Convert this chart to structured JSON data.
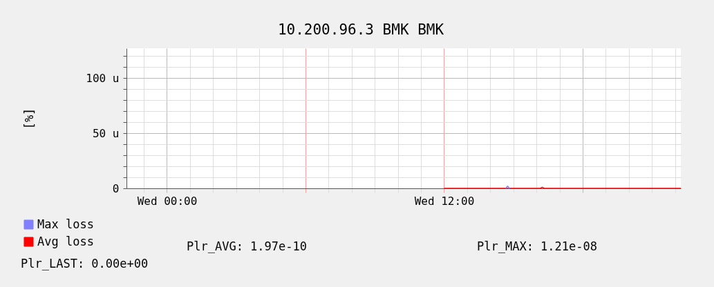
{
  "chart_data": {
    "type": "line",
    "title": "10.200.96.3 BMK BMK",
    "ylabel": "[%]",
    "x": [
      "--01-08T12:00",
      "--01-08T16:10",
      "--01-08T16:15",
      "--01-08T16:20",
      "--01-08T22:15"
    ],
    "series": [
      {
        "name": "Max loss",
        "color": "#8080ff",
        "x": [
          "--01-08T14:40",
          "--01-08T14:45",
          "--01-08T14:50"
        ],
        "values": [
          0,
          2,
          0
        ]
      },
      {
        "name": "Avg loss",
        "color": "#ff0000",
        "values": [
          0,
          0,
          1,
          0,
          0
        ]
      }
    ],
    "xlim": [
      "--01-07T22:15",
      "--01-08T22:15"
    ],
    "xticks": [
      {
        "value": "--01-07T23:00",
        "label": null
      },
      {
        "value": "--01-08T00:00",
        "label": "Wed 00:00"
      },
      {
        "value": "--01-08T01:00",
        "label": null
      },
      {
        "value": "--01-08T02:00",
        "label": null
      },
      {
        "value": "--01-08T03:00",
        "label": null
      },
      {
        "value": "--01-08T04:00",
        "label": null
      },
      {
        "value": "--01-08T05:00",
        "label": null
      },
      {
        "value": "--01-08T06:00",
        "label": null
      },
      {
        "value": "--01-08T07:00",
        "label": null
      },
      {
        "value": "--01-08T08:00",
        "label": null
      },
      {
        "value": "--01-08T09:00",
        "label": null
      },
      {
        "value": "--01-08T10:00",
        "label": null
      },
      {
        "value": "--01-08T11:00",
        "label": null
      },
      {
        "value": "--01-08T12:00",
        "label": "Wed 12:00"
      },
      {
        "value": "--01-08T13:00",
        "label": null
      },
      {
        "value": "--01-08T14:00",
        "label": null
      },
      {
        "value": "--01-08T15:00",
        "label": null
      },
      {
        "value": "--01-08T16:00",
        "label": null
      },
      {
        "value": "--01-08T17:00",
        "label": null
      },
      {
        "value": "--01-08T18:00",
        "label": null
      },
      {
        "value": "--01-08T19:00",
        "label": null
      },
      {
        "value": "--01-08T20:00",
        "label": null
      },
      {
        "value": "--01-08T21:00",
        "label": null
      },
      {
        "value": "--01-08T22:00",
        "label": null
      }
    ],
    "ylim": [
      0,
      127
    ],
    "yticks": [
      0,
      {
        "value": 10,
        "label": null
      },
      {
        "value": 20,
        "label": null
      },
      {
        "value": 30,
        "label": null
      },
      {
        "value": 40,
        "label": null
      },
      {
        "value": 50,
        "label": "50 u"
      },
      {
        "value": 60,
        "label": null
      },
      {
        "value": 70,
        "label": null
      },
      {
        "value": 80,
        "label": null
      },
      {
        "value": 90,
        "label": null
      },
      {
        "value": 100,
        "label": "100 u"
      },
      {
        "value": 110,
        "label": null
      },
      {
        "value": 120,
        "label": null
      }
    ],
    "grid": true,
    "legend": "bottom left",
    "marker": "none",
    "line_style": "solid",
    "annotations": [
      "Plr_AVG: 1.97e-10",
      "Plr_MAX: 1.21e-08",
      "Plr_LAST: 0.00e+00"
    ]
  }
}
